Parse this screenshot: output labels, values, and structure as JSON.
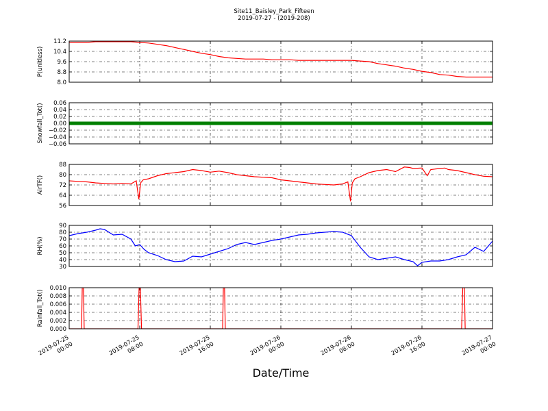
{
  "header": {
    "title": "Site11_Baisley_Park_Fifteen",
    "subtitle": "2019-07-27 - (2019-208)"
  },
  "xaxis": {
    "label": "Date/Time",
    "ticks": [
      {
        "hour": 0,
        "line1": "2019-07-25",
        "line2": "00:00"
      },
      {
        "hour": 8,
        "line1": "2019-07-25",
        "line2": "08:00"
      },
      {
        "hour": 16,
        "line1": "2019-07-25",
        "line2": "16:00"
      },
      {
        "hour": 24,
        "line1": "2019-07-26",
        "line2": "00:00"
      },
      {
        "hour": 32,
        "line1": "2019-07-26",
        "line2": "08:00"
      },
      {
        "hour": 40,
        "line1": "2019-07-26",
        "line2": "16:00"
      },
      {
        "hour": 48,
        "line1": "2019-07-27",
        "line2": "00:00"
      }
    ]
  },
  "chart_data": [
    {
      "type": "line",
      "ylabel": "P(unitless)",
      "ylim": [
        8.0,
        11.2
      ],
      "yticks": [
        "8.0",
        "8.8",
        "9.6",
        "10.4",
        "11.2"
      ],
      "color": "#ff0000",
      "grid": true,
      "x": [
        0,
        1,
        2,
        3,
        4,
        5,
        6,
        7,
        8,
        9,
        10,
        11,
        12,
        13,
        14,
        15,
        16,
        17,
        18,
        19,
        20,
        21,
        22,
        23,
        24,
        25,
        26,
        27,
        28,
        29,
        30,
        31,
        32,
        33,
        34,
        35,
        36,
        37,
        38,
        39,
        40,
        41,
        42,
        43,
        44,
        45,
        46,
        47,
        48
      ],
      "y": [
        11.1,
        11.1,
        11.1,
        11.15,
        11.15,
        11.15,
        11.15,
        11.15,
        11.1,
        11.05,
        10.95,
        10.85,
        10.7,
        10.55,
        10.4,
        10.25,
        10.15,
        10.0,
        9.9,
        9.85,
        9.8,
        9.8,
        9.8,
        9.75,
        9.75,
        9.75,
        9.7,
        9.7,
        9.7,
        9.7,
        9.7,
        9.7,
        9.7,
        9.65,
        9.6,
        9.45,
        9.35,
        9.25,
        9.1,
        9.0,
        8.85,
        8.75,
        8.6,
        8.55,
        8.45,
        8.4,
        8.4,
        8.4,
        8.4
      ]
    },
    {
      "type": "scatter",
      "ylabel": "Snowfall_Tot()",
      "ylim": [
        -0.06,
        0.06
      ],
      "yticks": [
        "−0.06",
        "−0.04",
        "−0.02",
        "0.00",
        "0.02",
        "0.04",
        "0.06"
      ],
      "color": "#008000",
      "grid": true,
      "x": [
        0,
        48
      ],
      "y": [
        0,
        0
      ]
    },
    {
      "type": "line",
      "ylabel": "AirTF()",
      "ylim": [
        48,
        88
      ],
      "yticks": [
        "56",
        "64",
        "72",
        "80",
        "88"
      ],
      "color": "#ff0000",
      "grid": true,
      "x": [
        0,
        1,
        2,
        3,
        4,
        5,
        6,
        7,
        7.6,
        7.9,
        8.1,
        8.4,
        9,
        10,
        11,
        12,
        13,
        14,
        15,
        16,
        17,
        18,
        19,
        20,
        21,
        22,
        23,
        24,
        25,
        26,
        27,
        28,
        29,
        30,
        31,
        31.6,
        31.9,
        32.1,
        32.4,
        33,
        34,
        35,
        36,
        37,
        38,
        38.6,
        39,
        40,
        40.6,
        41,
        42,
        42.6,
        43,
        44,
        45,
        46,
        47,
        48
      ],
      "y": [
        72,
        71.5,
        71,
        70,
        69.5,
        69,
        69.5,
        69,
        72,
        54,
        70,
        73,
        74,
        77,
        79,
        80,
        81,
        83,
        82,
        80.5,
        81.5,
        80,
        78,
        77,
        76,
        75.5,
        75,
        73,
        72,
        71,
        70,
        69,
        68.5,
        68,
        69,
        71,
        52,
        70,
        74,
        76,
        80,
        82,
        83,
        81,
        85.5,
        85,
        84,
        84.5,
        77,
        83,
        84,
        84.5,
        83,
        82,
        80,
        78,
        76.5,
        76
      ]
    },
    {
      "type": "line",
      "ylabel": "RH(%)",
      "ylim": [
        30,
        90
      ],
      "yticks": [
        "30",
        "40",
        "50",
        "60",
        "70",
        "80",
        "90"
      ],
      "color": "#0000ff",
      "grid": true,
      "x": [
        0,
        1,
        2,
        3,
        3.5,
        4,
        5,
        6,
        7,
        7.5,
        8,
        8.5,
        9,
        10,
        11,
        12,
        13,
        14,
        15,
        16,
        17,
        18,
        19,
        20,
        21,
        22,
        23,
        24,
        25,
        26,
        27,
        28,
        29,
        30,
        31,
        32,
        33,
        34,
        35,
        36,
        37,
        38,
        39,
        39.5,
        40,
        41,
        42,
        43,
        44,
        45,
        46,
        47,
        48
      ],
      "y": [
        75,
        78,
        80,
        83,
        85,
        84,
        76,
        77,
        70,
        60,
        62,
        55,
        50,
        46,
        40,
        37,
        38,
        45,
        44,
        48,
        52,
        56,
        62,
        65,
        62,
        65,
        68,
        70,
        73,
        76,
        77,
        79,
        80,
        81,
        80,
        75,
        58,
        44,
        40,
        42,
        44,
        40,
        37,
        31,
        36,
        38,
        38,
        40,
        44,
        47,
        58,
        52,
        67
      ]
    },
    {
      "type": "line",
      "ylabel": "Rainfall_Tot()",
      "ylim": [
        0.0,
        0.01
      ],
      "yticks": [
        "0.000",
        "0.002",
        "0.004",
        "0.006",
        "0.008",
        "0.010"
      ],
      "color": "#ff0000",
      "grid": true,
      "x": [
        0,
        1.4,
        1.5,
        1.6,
        1.7,
        7.8,
        7.95,
        8.05,
        8.2,
        17.4,
        17.5,
        17.6,
        17.7,
        38.8,
        44.5,
        44.65,
        44.8,
        44.9,
        48
      ],
      "y": [
        0,
        0,
        0.012,
        0.012,
        0,
        0,
        0.012,
        0.012,
        0,
        0,
        0.012,
        0.012,
        0,
        0,
        0,
        0.012,
        0.012,
        0,
        0
      ]
    }
  ]
}
